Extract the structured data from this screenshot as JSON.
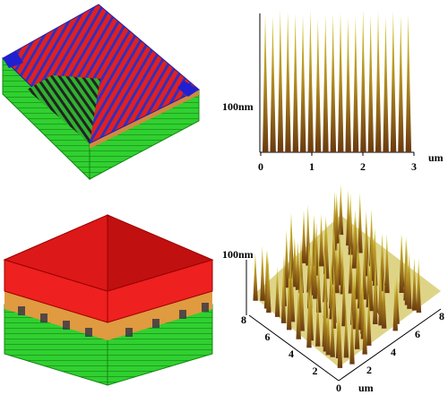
{
  "top_right": {
    "z_label": "100nm",
    "x_ticks": [
      "0",
      "1",
      "2",
      "3"
    ],
    "x_unit": "um"
  },
  "bottom_right": {
    "z_label": "100nm",
    "left_axis_ticks": [
      "8",
      "6",
      "4",
      "2",
      "0"
    ],
    "axis_unit": "um",
    "right_axis_ticks": [
      "2",
      "4",
      "6",
      "8"
    ]
  }
}
